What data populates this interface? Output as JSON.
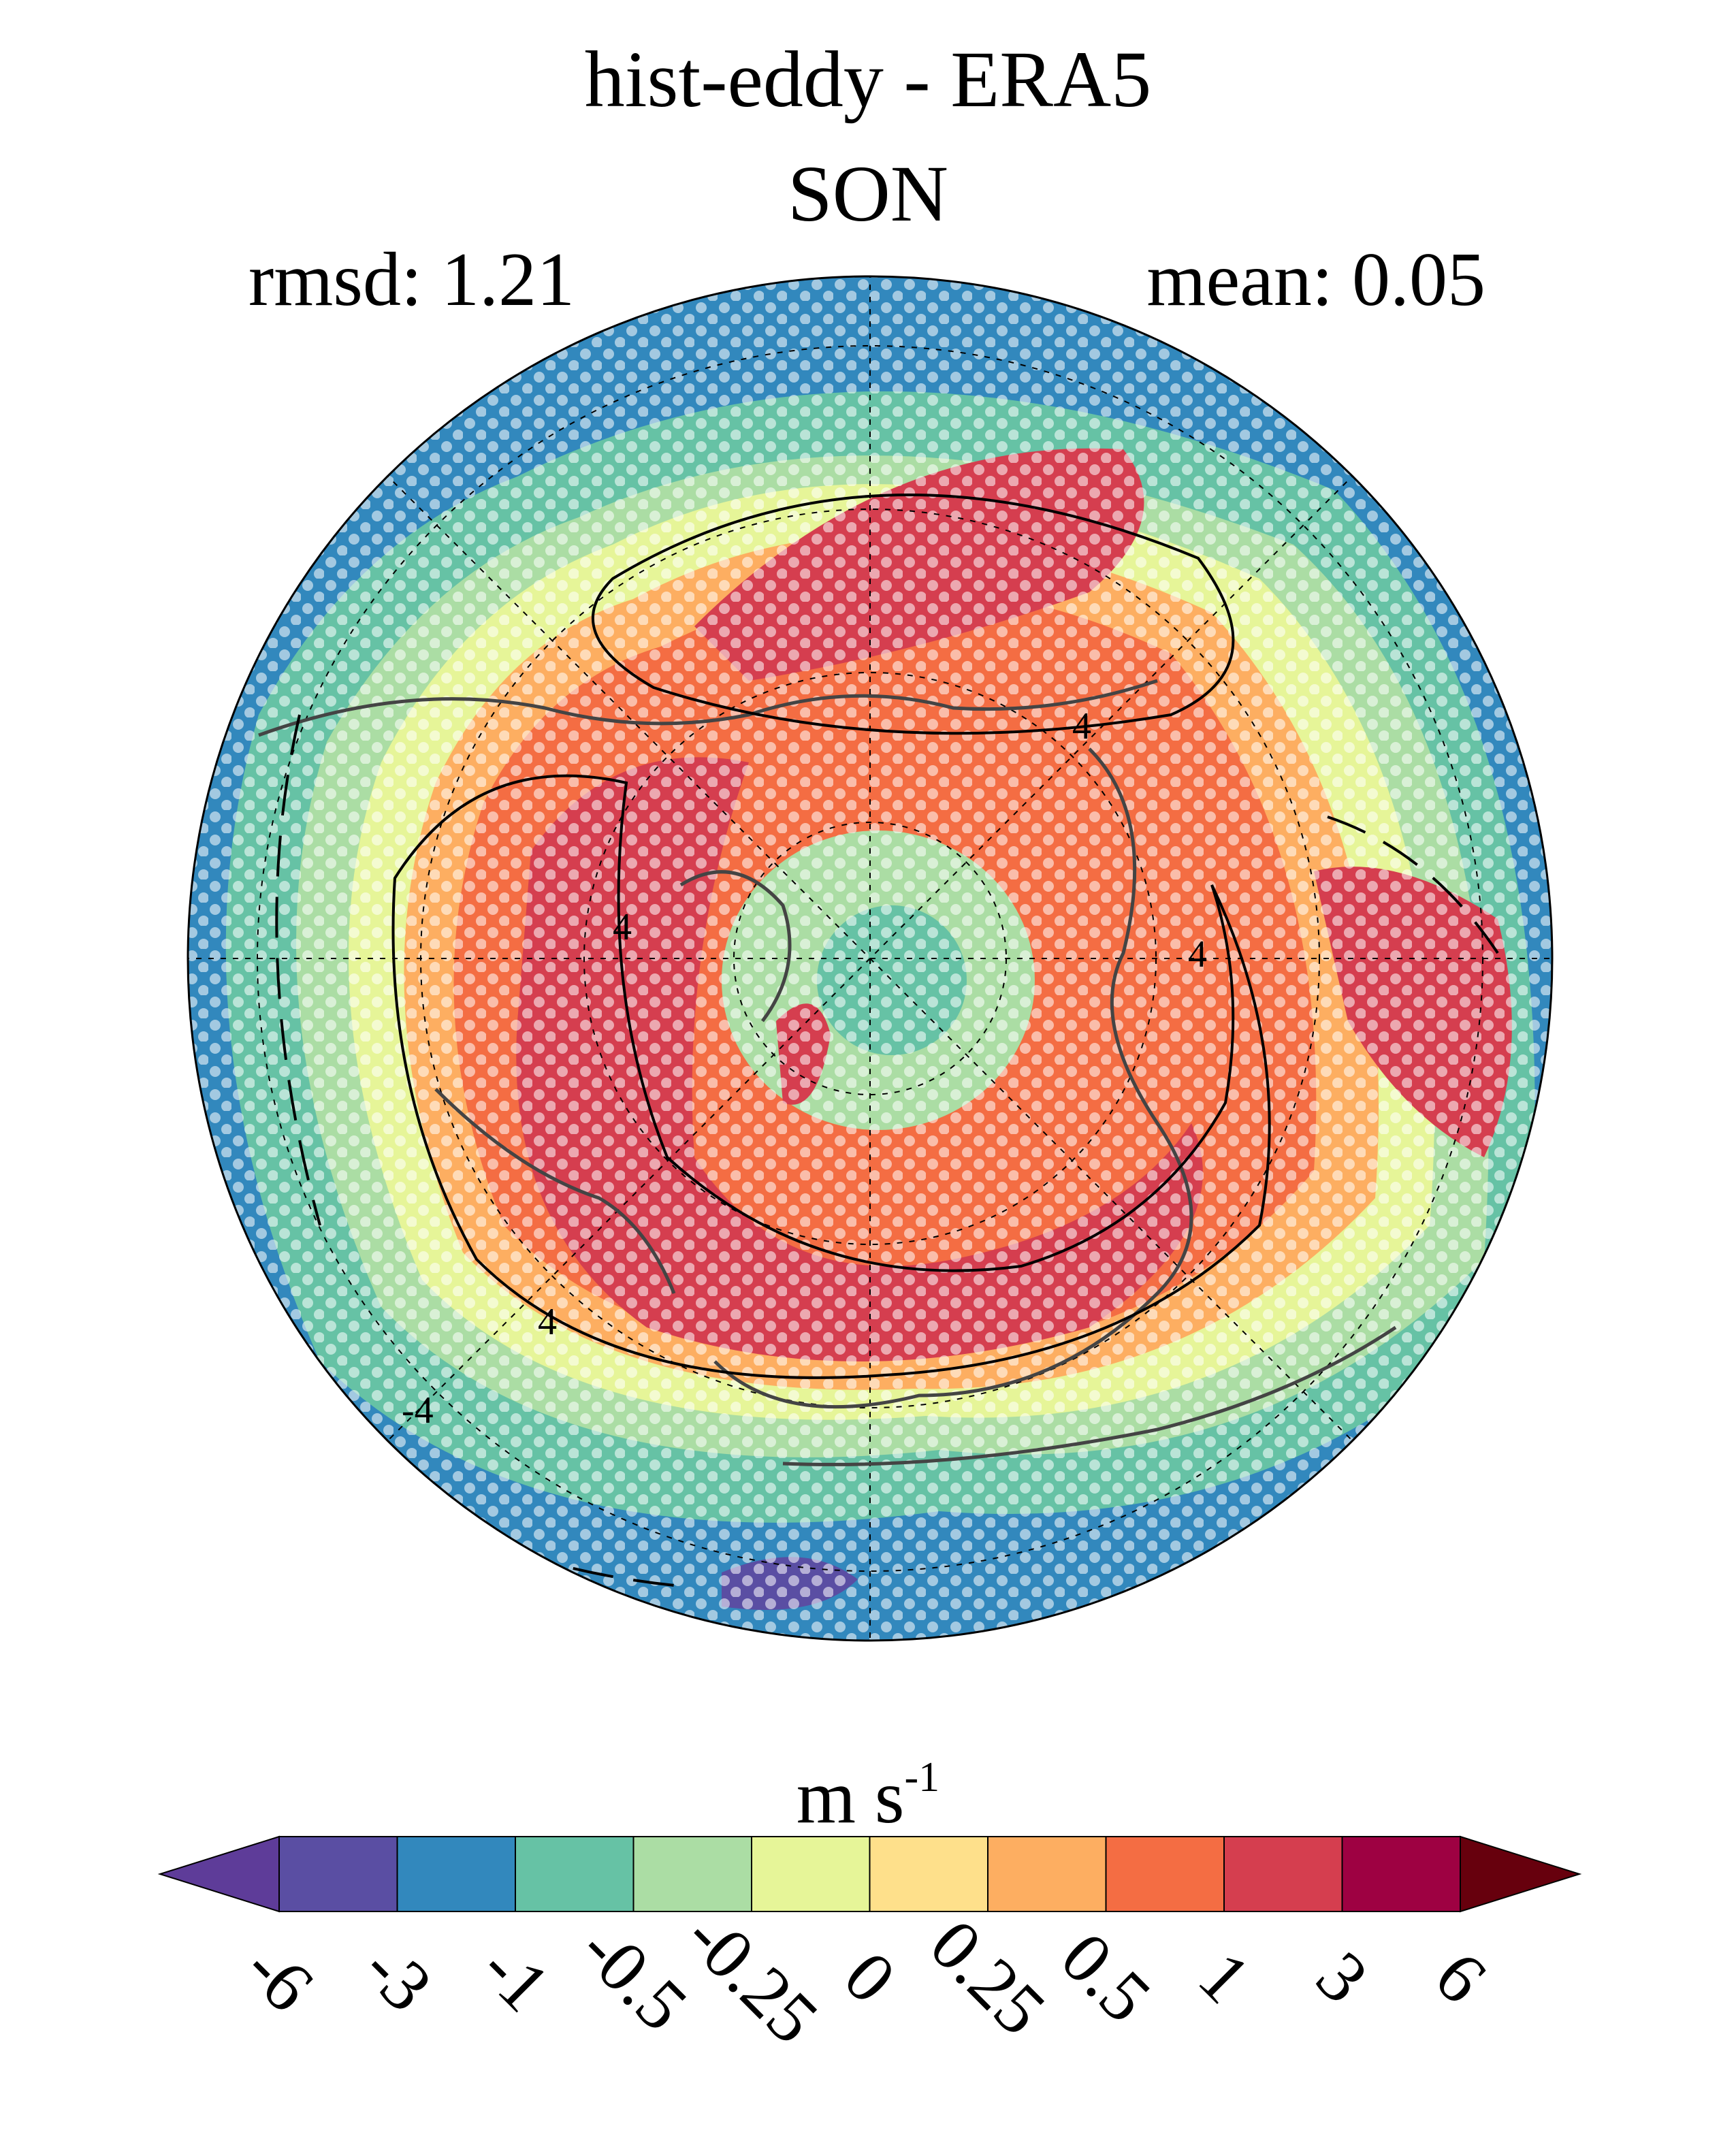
{
  "figure": {
    "title": "hist-eddy - ERA5",
    "season": "SON",
    "rmsd_text": "rmsd: 1.21",
    "mean_text": "mean: 0.05"
  },
  "colorbar": {
    "units_base": "m s",
    "units_exp": "-1",
    "ticks": [
      "-6",
      "-3",
      "-1",
      "-0.5",
      "-0.25",
      "0",
      "0.25",
      "0.5",
      "1",
      "3",
      "6"
    ],
    "colors": [
      "#5e3c99",
      "#5a4ea3",
      "#3288bd",
      "#66c2a5",
      "#abdda4",
      "#e6f598",
      "#fee08b",
      "#fdae61",
      "#f46d43",
      "#d53e4f",
      "#9e0142",
      "#67000d"
    ]
  },
  "map": {
    "projection": "north-polar-stereographic",
    "contour_labels": [
      "4",
      "4",
      "4",
      "4",
      "-4"
    ],
    "stippling": "white dots mark significant differences"
  }
}
